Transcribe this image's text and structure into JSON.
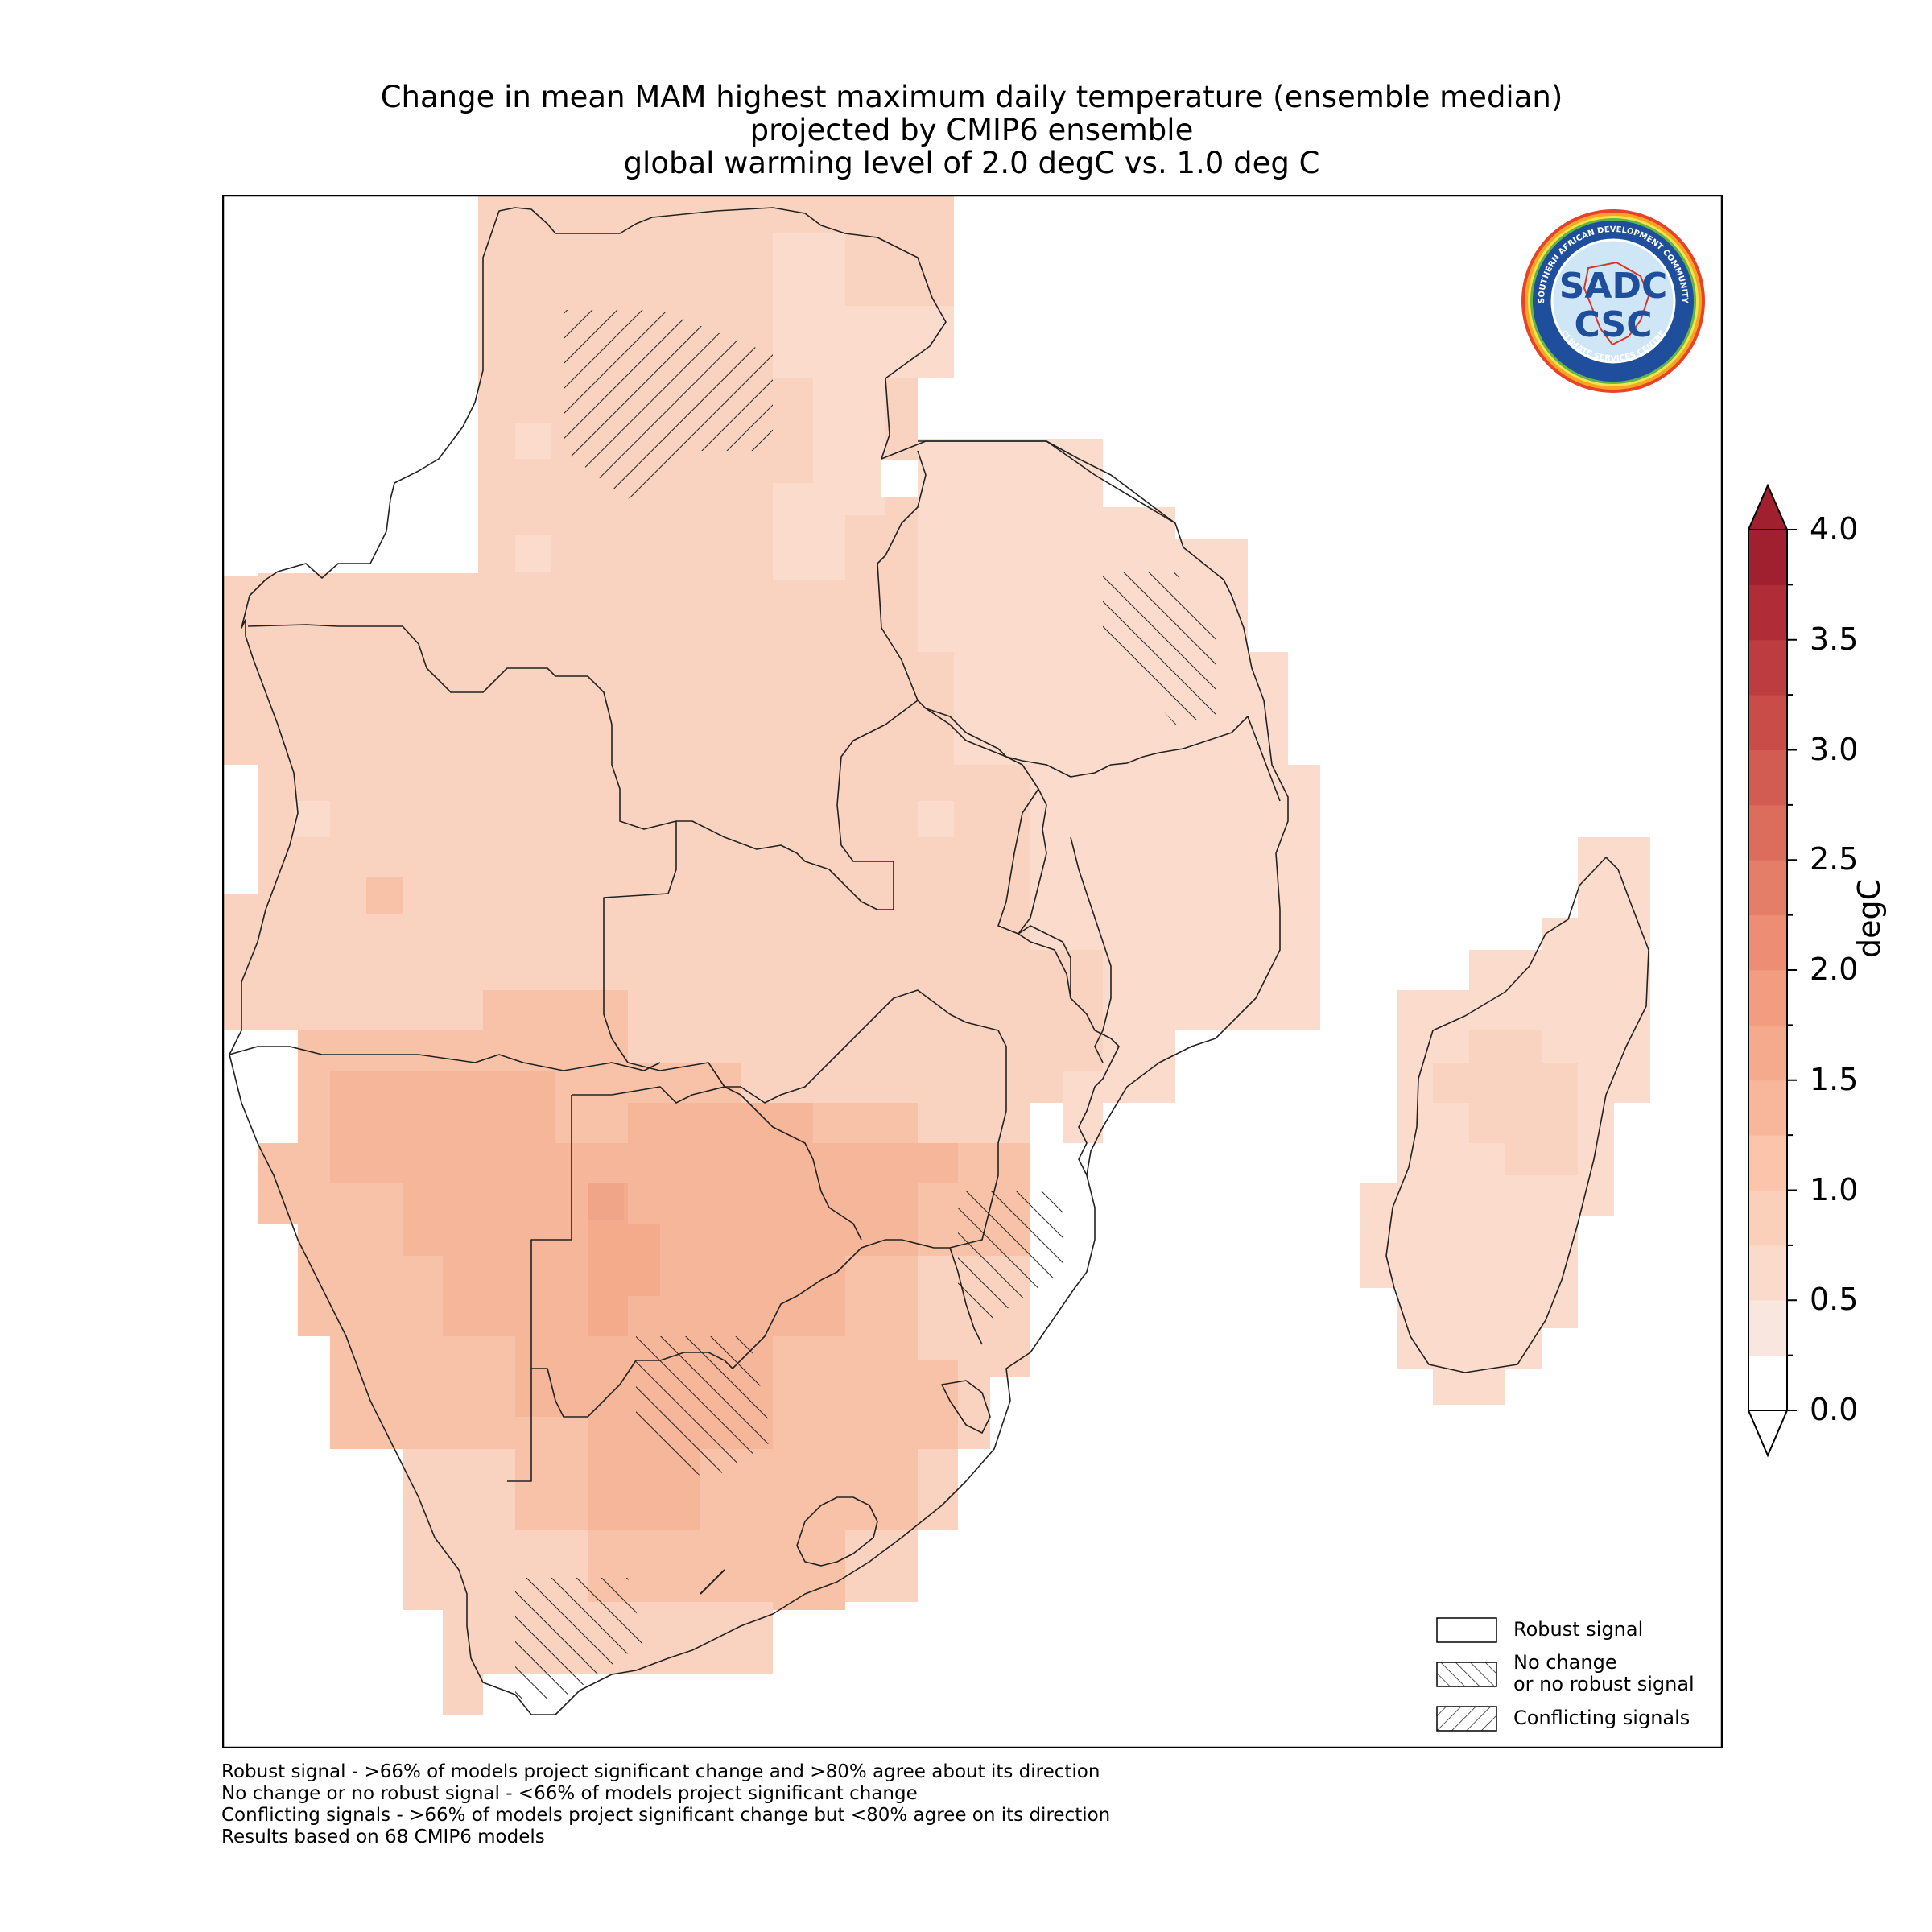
{
  "title": {
    "line1": "Change in mean MAM highest maximum daily temperature (ensemble median)",
    "line2": "projected by CMIP6 ensemble",
    "line3": "global warming level of 2.0 degC vs. 1.0 deg C"
  },
  "colorbar": {
    "unit": "degC",
    "ticks": [
      "0.0",
      "0.5",
      "1.0",
      "1.5",
      "2.0",
      "2.5",
      "3.0",
      "3.5",
      "4.0"
    ],
    "min": 0.0,
    "max": 4.0,
    "extend": "both",
    "colors": [
      "#ffffff",
      "#f8e6df",
      "#fadbcb",
      "#fbd0bb",
      "#fbc4ab",
      "#f8b79b",
      "#f6aa8d",
      "#f39d80",
      "#ed8e74",
      "#e57e68",
      "#dc6d5d",
      "#d35c52",
      "#c94c48",
      "#bd3c3f",
      "#b02c37",
      "#a1202f"
    ],
    "over_color": "#a1202f"
  },
  "logo": {
    "org_text_top": "SOUTHERN AFRICAN DEVELOPMENT COMMUNITY",
    "org_text_bottom": "CLIMATE SERVICES CENTRE",
    "mark_top": "SADC",
    "mark_bottom": "CSC"
  },
  "legend": {
    "placement": "bottom-right",
    "items": [
      {
        "label": "Robust signal",
        "hatch": "none"
      },
      {
        "label_line1": "No change",
        "label_line2": "or no robust signal",
        "hatch": "forward"
      },
      {
        "label": "Conflicting signals",
        "hatch": "back"
      }
    ]
  },
  "footnotes": [
    "Robust signal - >66% of models project significant change and >80% agree about its direction",
    "No change or no robust signal - <66% of models project significant change",
    "Conflicting signals - >66% of models project significant change but <80% agree on its direction",
    "Results based on 68 CMIP6 models"
  ],
  "map": {
    "region": "Southern Africa and Madagascar",
    "fill_value_levels": [
      0.75,
      1.0,
      1.25,
      1.5
    ]
  }
}
